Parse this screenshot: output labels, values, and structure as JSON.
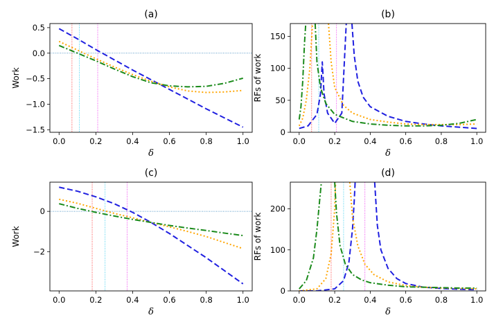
{
  "figure": {
    "description_free": true
  },
  "chart_data": [
    {
      "panel": "a",
      "type": "line",
      "title": "(a)",
      "xlabel": "δ",
      "ylabel": "Work",
      "xlim": [
        -0.05,
        1.05
      ],
      "ylim": [
        -1.55,
        0.58
      ],
      "xticks": [
        0.0,
        0.2,
        0.4,
        0.6,
        0.8,
        1.0
      ],
      "xtick_labels": [
        "0.0",
        "0.2",
        "0.4",
        "0.6",
        "0.8",
        "1.0"
      ],
      "yticks": [
        0.5,
        0.0,
        -0.5,
        -1.0,
        -1.5
      ],
      "ytick_labels": [
        "0.5",
        "0.0",
        "−0.5",
        "−1.0",
        "−1.5"
      ],
      "hline": {
        "y": 0.0,
        "color": "#1f77b4"
      },
      "vlines": [
        {
          "x": 0.07,
          "color": "#ff3333"
        },
        {
          "x": 0.11,
          "color": "#33ccee"
        },
        {
          "x": 0.21,
          "color": "#ee33ee"
        }
      ],
      "series": [
        {
          "name": "blue-dashed",
          "color": "#1f1fe0",
          "style": "dashed",
          "x": [
            0,
            0.1,
            0.2,
            0.3,
            0.4,
            0.5,
            0.6,
            0.7,
            0.8,
            0.9,
            1.0
          ],
          "y": [
            0.48,
            0.28,
            0.07,
            -0.13,
            -0.33,
            -0.52,
            -0.71,
            -0.9,
            -1.09,
            -1.27,
            -1.45
          ]
        },
        {
          "name": "orange-dotted",
          "color": "#ffa500",
          "style": "dotted",
          "x": [
            0,
            0.1,
            0.2,
            0.3,
            0.4,
            0.5,
            0.6,
            0.7,
            0.8,
            0.9,
            1.0
          ],
          "y": [
            0.23,
            0.06,
            -0.11,
            -0.27,
            -0.42,
            -0.55,
            -0.66,
            -0.74,
            -0.77,
            -0.76,
            -0.73
          ]
        },
        {
          "name": "green-dashdot",
          "color": "#1a8a1a",
          "style": "dashdot",
          "x": [
            0,
            0.1,
            0.2,
            0.3,
            0.4,
            0.5,
            0.6,
            0.7,
            0.8,
            0.9,
            1.0
          ],
          "y": [
            0.15,
            0.0,
            -0.15,
            -0.31,
            -0.46,
            -0.58,
            -0.64,
            -0.66,
            -0.65,
            -0.59,
            -0.49
          ]
        }
      ]
    },
    {
      "panel": "b",
      "type": "line",
      "title": "(b)",
      "xlabel": "δ",
      "ylabel": "RFs of work",
      "xlim": [
        -0.05,
        1.05
      ],
      "ylim": [
        0,
        170
      ],
      "xticks": [
        0.0,
        0.2,
        0.4,
        0.6,
        0.8,
        1.0
      ],
      "xtick_labels": [
        "0.0",
        "0.2",
        "0.4",
        "0.6",
        "0.8",
        "1.0"
      ],
      "yticks": [
        0,
        50,
        100,
        150
      ],
      "ytick_labels": [
        "0",
        "50",
        "100",
        "150"
      ],
      "vlines": [
        {
          "x": 0.07,
          "color": "#ff3333"
        },
        {
          "x": 0.11,
          "color": "#33ccee"
        },
        {
          "x": 0.21,
          "color": "#ee33ee"
        }
      ],
      "series": [
        {
          "name": "blue-dashed",
          "color": "#1f1fe0",
          "style": "dashed",
          "x": [
            0,
            0.05,
            0.1,
            0.12,
            0.13,
            0.14,
            0.16,
            0.2,
            0.24,
            0.265
          ],
          "y": [
            6,
            10,
            28,
            60,
            110,
            60,
            30,
            14,
            30,
            170
          ]
        },
        {
          "name": "blue-dashed-right",
          "color": "#1f1fe0",
          "style": "dashed",
          "x": [
            0.297,
            0.31,
            0.33,
            0.36,
            0.4,
            0.5,
            0.6,
            0.7,
            0.8,
            0.9,
            1.0
          ],
          "y": [
            170,
            120,
            80,
            55,
            40,
            25,
            17,
            13,
            10,
            8,
            6
          ]
        },
        {
          "name": "orange-dotted-left",
          "color": "#ffa500",
          "style": "dotted",
          "x": [
            0,
            0.02,
            0.04,
            0.06,
            0.075
          ],
          "y": [
            10,
            22,
            50,
            100,
            170
          ]
        },
        {
          "name": "orange-dotted-right",
          "color": "#ffa500",
          "style": "dotted",
          "x": [
            0.165,
            0.18,
            0.2,
            0.25,
            0.3,
            0.4,
            0.5,
            0.6,
            0.7,
            0.8,
            0.9,
            1.0
          ],
          "y": [
            170,
            110,
            70,
            42,
            30,
            20,
            16,
            13,
            12,
            12,
            12,
            13
          ]
        },
        {
          "name": "green-dashdot-left",
          "color": "#1a8a1a",
          "style": "dashdot",
          "x": [
            0,
            0.01,
            0.02,
            0.03,
            0.037
          ],
          "y": [
            20,
            40,
            80,
            140,
            170
          ]
        },
        {
          "name": "green-dashdot-right",
          "color": "#1a8a1a",
          "style": "dashdot",
          "x": [
            0.09,
            0.1,
            0.12,
            0.15,
            0.2,
            0.3,
            0.4,
            0.5,
            0.6,
            0.7,
            0.8,
            0.9,
            1.0
          ],
          "y": [
            170,
            110,
            70,
            45,
            28,
            17,
            13,
            11,
            10,
            10,
            11,
            14,
            20
          ]
        }
      ]
    },
    {
      "panel": "c",
      "type": "line",
      "title": "(c)",
      "xlabel": "δ",
      "ylabel": "Work",
      "xlim": [
        -0.05,
        1.05
      ],
      "ylim": [
        -3.95,
        1.45
      ],
      "xticks": [
        0.0,
        0.2,
        0.4,
        0.6,
        0.8,
        1.0
      ],
      "xtick_labels": [
        "0.0",
        "0.2",
        "0.4",
        "0.6",
        "0.8",
        "1.0"
      ],
      "yticks": [
        0,
        -2
      ],
      "ytick_labels": [
        "0",
        "−2"
      ],
      "hline": {
        "y": 0.0,
        "color": "#1f77b4"
      },
      "vlines": [
        {
          "x": 0.18,
          "color": "#ff3333"
        },
        {
          "x": 0.25,
          "color": "#33ccee"
        },
        {
          "x": 0.37,
          "color": "#ee33ee"
        }
      ],
      "series": [
        {
          "name": "blue-dashed",
          "color": "#1f1fe0",
          "style": "dashed",
          "x": [
            0,
            0.1,
            0.2,
            0.3,
            0.4,
            0.5,
            0.6,
            0.7,
            0.8,
            0.9,
            1.0
          ],
          "y": [
            1.2,
            1.0,
            0.72,
            0.38,
            -0.05,
            -0.55,
            -1.1,
            -1.7,
            -2.3,
            -2.95,
            -3.6
          ]
        },
        {
          "name": "orange-dotted",
          "color": "#ffa500",
          "style": "dotted",
          "x": [
            0,
            0.1,
            0.2,
            0.3,
            0.4,
            0.5,
            0.6,
            0.7,
            0.8,
            0.9,
            1.0
          ],
          "y": [
            0.6,
            0.4,
            0.15,
            -0.1,
            -0.32,
            -0.55,
            -0.77,
            -1.0,
            -1.25,
            -1.55,
            -1.85
          ]
        },
        {
          "name": "green-dashdot",
          "color": "#1a8a1a",
          "style": "dashdot",
          "x": [
            0,
            0.1,
            0.2,
            0.3,
            0.4,
            0.5,
            0.6,
            0.7,
            0.8,
            0.9,
            1.0
          ],
          "y": [
            0.38,
            0.15,
            -0.05,
            -0.23,
            -0.4,
            -0.55,
            -0.7,
            -0.83,
            -0.95,
            -1.08,
            -1.2
          ]
        }
      ]
    },
    {
      "panel": "d",
      "type": "line",
      "title": "(d)",
      "xlabel": "δ",
      "ylabel": "RFs of work",
      "xlim": [
        -0.05,
        1.05
      ],
      "ylim": [
        0,
        265
      ],
      "xticks": [
        0.0,
        0.2,
        0.4,
        0.6,
        0.8,
        1.0
      ],
      "xtick_labels": [
        "0.0",
        "0.2",
        "0.4",
        "0.6",
        "0.8",
        "1.0"
      ],
      "yticks": [
        0,
        100,
        200
      ],
      "ytick_labels": [
        "0",
        "100",
        "200"
      ],
      "vlines": [
        {
          "x": 0.18,
          "color": "#ff3333"
        },
        {
          "x": 0.25,
          "color": "#33ccee"
        },
        {
          "x": 0.37,
          "color": "#ee33ee"
        }
      ],
      "series": [
        {
          "name": "blue-dashed-left",
          "color": "#1f1fe0",
          "style": "dashed",
          "x": [
            0,
            0.1,
            0.2,
            0.25,
            0.28,
            0.3,
            0.31,
            0.315
          ],
          "y": [
            0,
            0,
            5,
            25,
            70,
            150,
            220,
            265
          ]
        },
        {
          "name": "blue-dashed-right",
          "color": "#1f1fe0",
          "style": "dashed",
          "x": [
            0.425,
            0.44,
            0.46,
            0.5,
            0.55,
            0.6,
            0.7,
            0.8,
            0.9,
            1.0
          ],
          "y": [
            265,
            160,
            100,
            55,
            30,
            18,
            9,
            6,
            4,
            3
          ]
        },
        {
          "name": "orange-dotted-left",
          "color": "#ffa500",
          "style": "dotted",
          "x": [
            0,
            0.1,
            0.15,
            0.18,
            0.2,
            0.205
          ],
          "y": [
            0,
            5,
            30,
            90,
            200,
            265
          ]
        },
        {
          "name": "orange-dotted-right",
          "color": "#ffa500",
          "style": "dotted",
          "x": [
            0.285,
            0.3,
            0.33,
            0.37,
            0.42,
            0.5,
            0.6,
            0.7,
            0.8,
            0.9,
            1.0
          ],
          "y": [
            265,
            180,
            110,
            65,
            40,
            22,
            13,
            9,
            7,
            6,
            5
          ]
        },
        {
          "name": "green-dashdot-left",
          "color": "#1a8a1a",
          "style": "dashdot",
          "x": [
            0,
            0.04,
            0.08,
            0.1,
            0.115,
            0.125
          ],
          "y": [
            5,
            25,
            80,
            150,
            220,
            265
          ]
        },
        {
          "name": "green-dashdot-right",
          "color": "#1a8a1a",
          "style": "dashdot",
          "x": [
            0.2,
            0.21,
            0.23,
            0.26,
            0.3,
            0.35,
            0.4,
            0.5,
            0.6,
            0.7,
            0.8,
            0.9,
            1.0
          ],
          "y": [
            265,
            190,
            110,
            65,
            40,
            27,
            20,
            14,
            10,
            9,
            8,
            7,
            7
          ]
        }
      ]
    }
  ]
}
